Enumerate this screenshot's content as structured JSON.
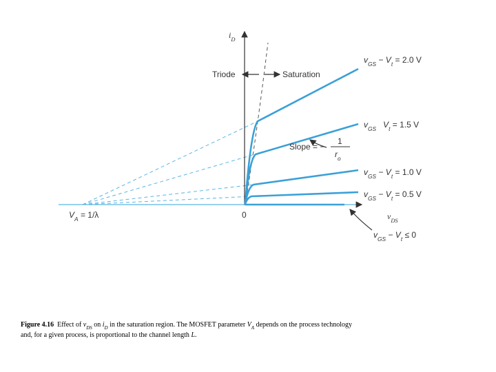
{
  "diagram": {
    "y_axis_label": [
      {
        "text": "i",
        "style": "italic"
      },
      {
        "text": "D",
        "style": "sub"
      }
    ],
    "x_axis_label": [
      {
        "text": "v",
        "style": "italic"
      },
      {
        "text": "DS",
        "style": "sub"
      }
    ],
    "origin_label": [
      {
        "text": "0",
        "style": "normal"
      }
    ],
    "va_label": [
      {
        "text": "V",
        "style": "italic"
      },
      {
        "text": "A",
        "style": "sub"
      },
      {
        "text": " = 1/λ",
        "style": "normal"
      }
    ],
    "triode_label": [
      {
        "text": "Triode",
        "style": "normal"
      }
    ],
    "saturation_label": [
      {
        "text": "Saturation",
        "style": "normal"
      }
    ],
    "curves": [
      {
        "label": [
          {
            "text": "v",
            "style": "italic"
          },
          {
            "text": "GS",
            "style": "sub"
          },
          {
            "text": " − ",
            "style": "normal"
          },
          {
            "text": "V",
            "style": "italic"
          },
          {
            "text": "t",
            "style": "sub"
          },
          {
            "text": " = 2.0 V",
            "style": "normal"
          }
        ]
      },
      {
        "label": [
          {
            "text": "v",
            "style": "italic"
          },
          {
            "text": "GS",
            "style": "sub"
          },
          {
            "text": "   ",
            "style": "normal"
          },
          {
            "text": "V",
            "style": "italic"
          },
          {
            "text": "t",
            "style": "sub"
          },
          {
            "text": " = 1.5 V",
            "style": "normal"
          }
        ]
      },
      {
        "label": [
          {
            "text": "v",
            "style": "italic"
          },
          {
            "text": "GS",
            "style": "sub"
          },
          {
            "text": " − ",
            "style": "normal"
          },
          {
            "text": "V",
            "style": "italic"
          },
          {
            "text": "t",
            "style": "sub"
          },
          {
            "text": " = 1.0 V",
            "style": "normal"
          }
        ]
      },
      {
        "label": [
          {
            "text": "v",
            "style": "italic"
          },
          {
            "text": "GS",
            "style": "sub"
          },
          {
            "text": " − ",
            "style": "normal"
          },
          {
            "text": "V",
            "style": "italic"
          },
          {
            "text": "t",
            "style": "sub"
          },
          {
            "text": " = 0.5 V",
            "style": "normal"
          }
        ]
      },
      {
        "label": [
          {
            "text": "v",
            "style": "italic"
          },
          {
            "text": "GS",
            "style": "sub"
          },
          {
            "text": " − ",
            "style": "normal"
          },
          {
            "text": "V",
            "style": "italic"
          },
          {
            "text": "t",
            "style": "sub"
          },
          {
            "text": " ≤ 0",
            "style": "normal"
          }
        ]
      }
    ],
    "slope_label": [
      {
        "text": "Slope = −",
        "style": "normal"
      }
    ],
    "slope_numerator": [
      {
        "text": "1",
        "style": "normal"
      }
    ],
    "slope_denominator": [
      {
        "text": "r",
        "style": "italic"
      },
      {
        "text": "o",
        "style": "sub"
      }
    ],
    "caption_line_1": [
      {
        "text": "Figure 4.16",
        "style": "bold"
      },
      {
        "text": "  Effect of ",
        "style": "normal"
      },
      {
        "text": "v",
        "style": "italic"
      },
      {
        "text": "DS",
        "style": "sub"
      },
      {
        "text": " on ",
        "style": "normal"
      },
      {
        "text": "i",
        "style": "italic"
      },
      {
        "text": "D",
        "style": "sub"
      },
      {
        "text": " in the saturation region. The MOSFET parameter ",
        "style": "normal"
      },
      {
        "text": "V",
        "style": "italic"
      },
      {
        "text": "A",
        "style": "sub"
      },
      {
        "text": " depends on the process technology",
        "style": "normal"
      }
    ],
    "caption_line_2": [
      {
        "text": "and, for a given process, is proportional to the channel length ",
        "style": "normal"
      },
      {
        "text": "L",
        "style": "italic"
      },
      {
        "text": ".",
        "style": "normal"
      }
    ]
  }
}
